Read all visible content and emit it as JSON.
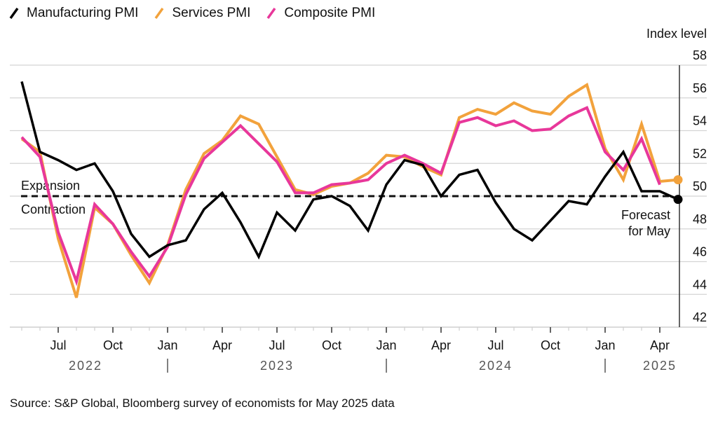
{
  "chart_data": {
    "type": "line",
    "title": "",
    "ylabel": "Index level",
    "xlabel": "",
    "ylim": [
      42,
      58
    ],
    "yticks": [
      42,
      44,
      46,
      48,
      50,
      52,
      54,
      56,
      58
    ],
    "grid": true,
    "legend_position": "top-left",
    "x": [
      "2022-05",
      "2022-06",
      "2022-07",
      "2022-08",
      "2022-09",
      "2022-10",
      "2022-11",
      "2022-12",
      "2023-01",
      "2023-02",
      "2023-03",
      "2023-04",
      "2023-05",
      "2023-06",
      "2023-07",
      "2023-08",
      "2023-09",
      "2023-10",
      "2023-11",
      "2023-12",
      "2024-01",
      "2024-02",
      "2024-03",
      "2024-04",
      "2024-05",
      "2024-06",
      "2024-07",
      "2024-08",
      "2024-09",
      "2024-10",
      "2024-11",
      "2024-12",
      "2025-01",
      "2025-02",
      "2025-03",
      "2025-04",
      "2025-05"
    ],
    "xticks": [
      {
        "label": "Jul",
        "index": 2
      },
      {
        "label": "Oct",
        "index": 5
      },
      {
        "label": "Jan",
        "index": 8
      },
      {
        "label": "Apr",
        "index": 11
      },
      {
        "label": "Jul",
        "index": 14
      },
      {
        "label": "Oct",
        "index": 17
      },
      {
        "label": "Jan",
        "index": 20
      },
      {
        "label": "Apr",
        "index": 23
      },
      {
        "label": "Jul",
        "index": 26
      },
      {
        "label": "Oct",
        "index": 29
      },
      {
        "label": "Jan",
        "index": 32
      },
      {
        "label": "Apr",
        "index": 35
      }
    ],
    "year_labels": [
      {
        "label": "2022",
        "index": 3.5
      },
      {
        "label": "2023",
        "index": 14
      },
      {
        "label": "2024",
        "index": 26
      },
      {
        "label": "2025",
        "index": 35
      }
    ],
    "year_separators": [
      8,
      20,
      32
    ],
    "series": [
      {
        "name": "Manufacturing PMI",
        "color": "#000000",
        "values": [
          57.0,
          52.7,
          52.2,
          51.6,
          52.0,
          50.3,
          47.7,
          46.3,
          47.0,
          47.3,
          49.2,
          50.2,
          48.4,
          46.3,
          49.0,
          47.9,
          49.8,
          50.0,
          49.4,
          47.9,
          50.7,
          52.2,
          51.9,
          50.0,
          51.3,
          51.6,
          49.6,
          48.0,
          47.3,
          48.5,
          49.7,
          49.5,
          51.2,
          52.7,
          50.3,
          50.3,
          49.8
        ],
        "forecast_last": true
      },
      {
        "name": "Services PMI",
        "color": "#F2A23C",
        "values": [
          53.5,
          52.7,
          47.4,
          43.8,
          49.3,
          48.3,
          46.4,
          44.7,
          47.0,
          50.4,
          52.6,
          53.4,
          54.9,
          54.4,
          52.4,
          50.4,
          50.1,
          50.6,
          50.8,
          51.4,
          52.5,
          52.4,
          51.8,
          51.3,
          54.8,
          55.3,
          55.0,
          55.7,
          55.2,
          55.0,
          56.1,
          56.8,
          52.9,
          51.0,
          54.4,
          50.9,
          51.0
        ],
        "forecast_last": true
      },
      {
        "name": "Composite PMI",
        "color": "#E8379A",
        "values": [
          53.6,
          52.4,
          47.8,
          44.8,
          49.5,
          48.3,
          46.6,
          45.1,
          46.9,
          50.1,
          52.3,
          53.3,
          54.3,
          53.2,
          52.1,
          50.2,
          50.2,
          50.7,
          50.8,
          51.0,
          52.0,
          52.5,
          52.0,
          51.4,
          54.5,
          54.8,
          54.3,
          54.6,
          54.0,
          54.1,
          54.9,
          55.4,
          52.7,
          51.6,
          53.5,
          50.7,
          null
        ],
        "forecast_last": false
      }
    ],
    "reference_line": {
      "value": 50,
      "label_above": "Expansion",
      "label_below": "Contraction"
    },
    "annotations": [
      {
        "text_line1": "Forecast",
        "text_line2": "for May"
      }
    ]
  },
  "legend": {
    "items": [
      {
        "label": "Manufacturing PMI",
        "color": "#000000"
      },
      {
        "label": "Services PMI",
        "color": "#F2A23C"
      },
      {
        "label": "Composite PMI",
        "color": "#E8379A"
      }
    ]
  },
  "source": "Source: S&P Global, Bloomberg survey of economists for May 2025 data"
}
